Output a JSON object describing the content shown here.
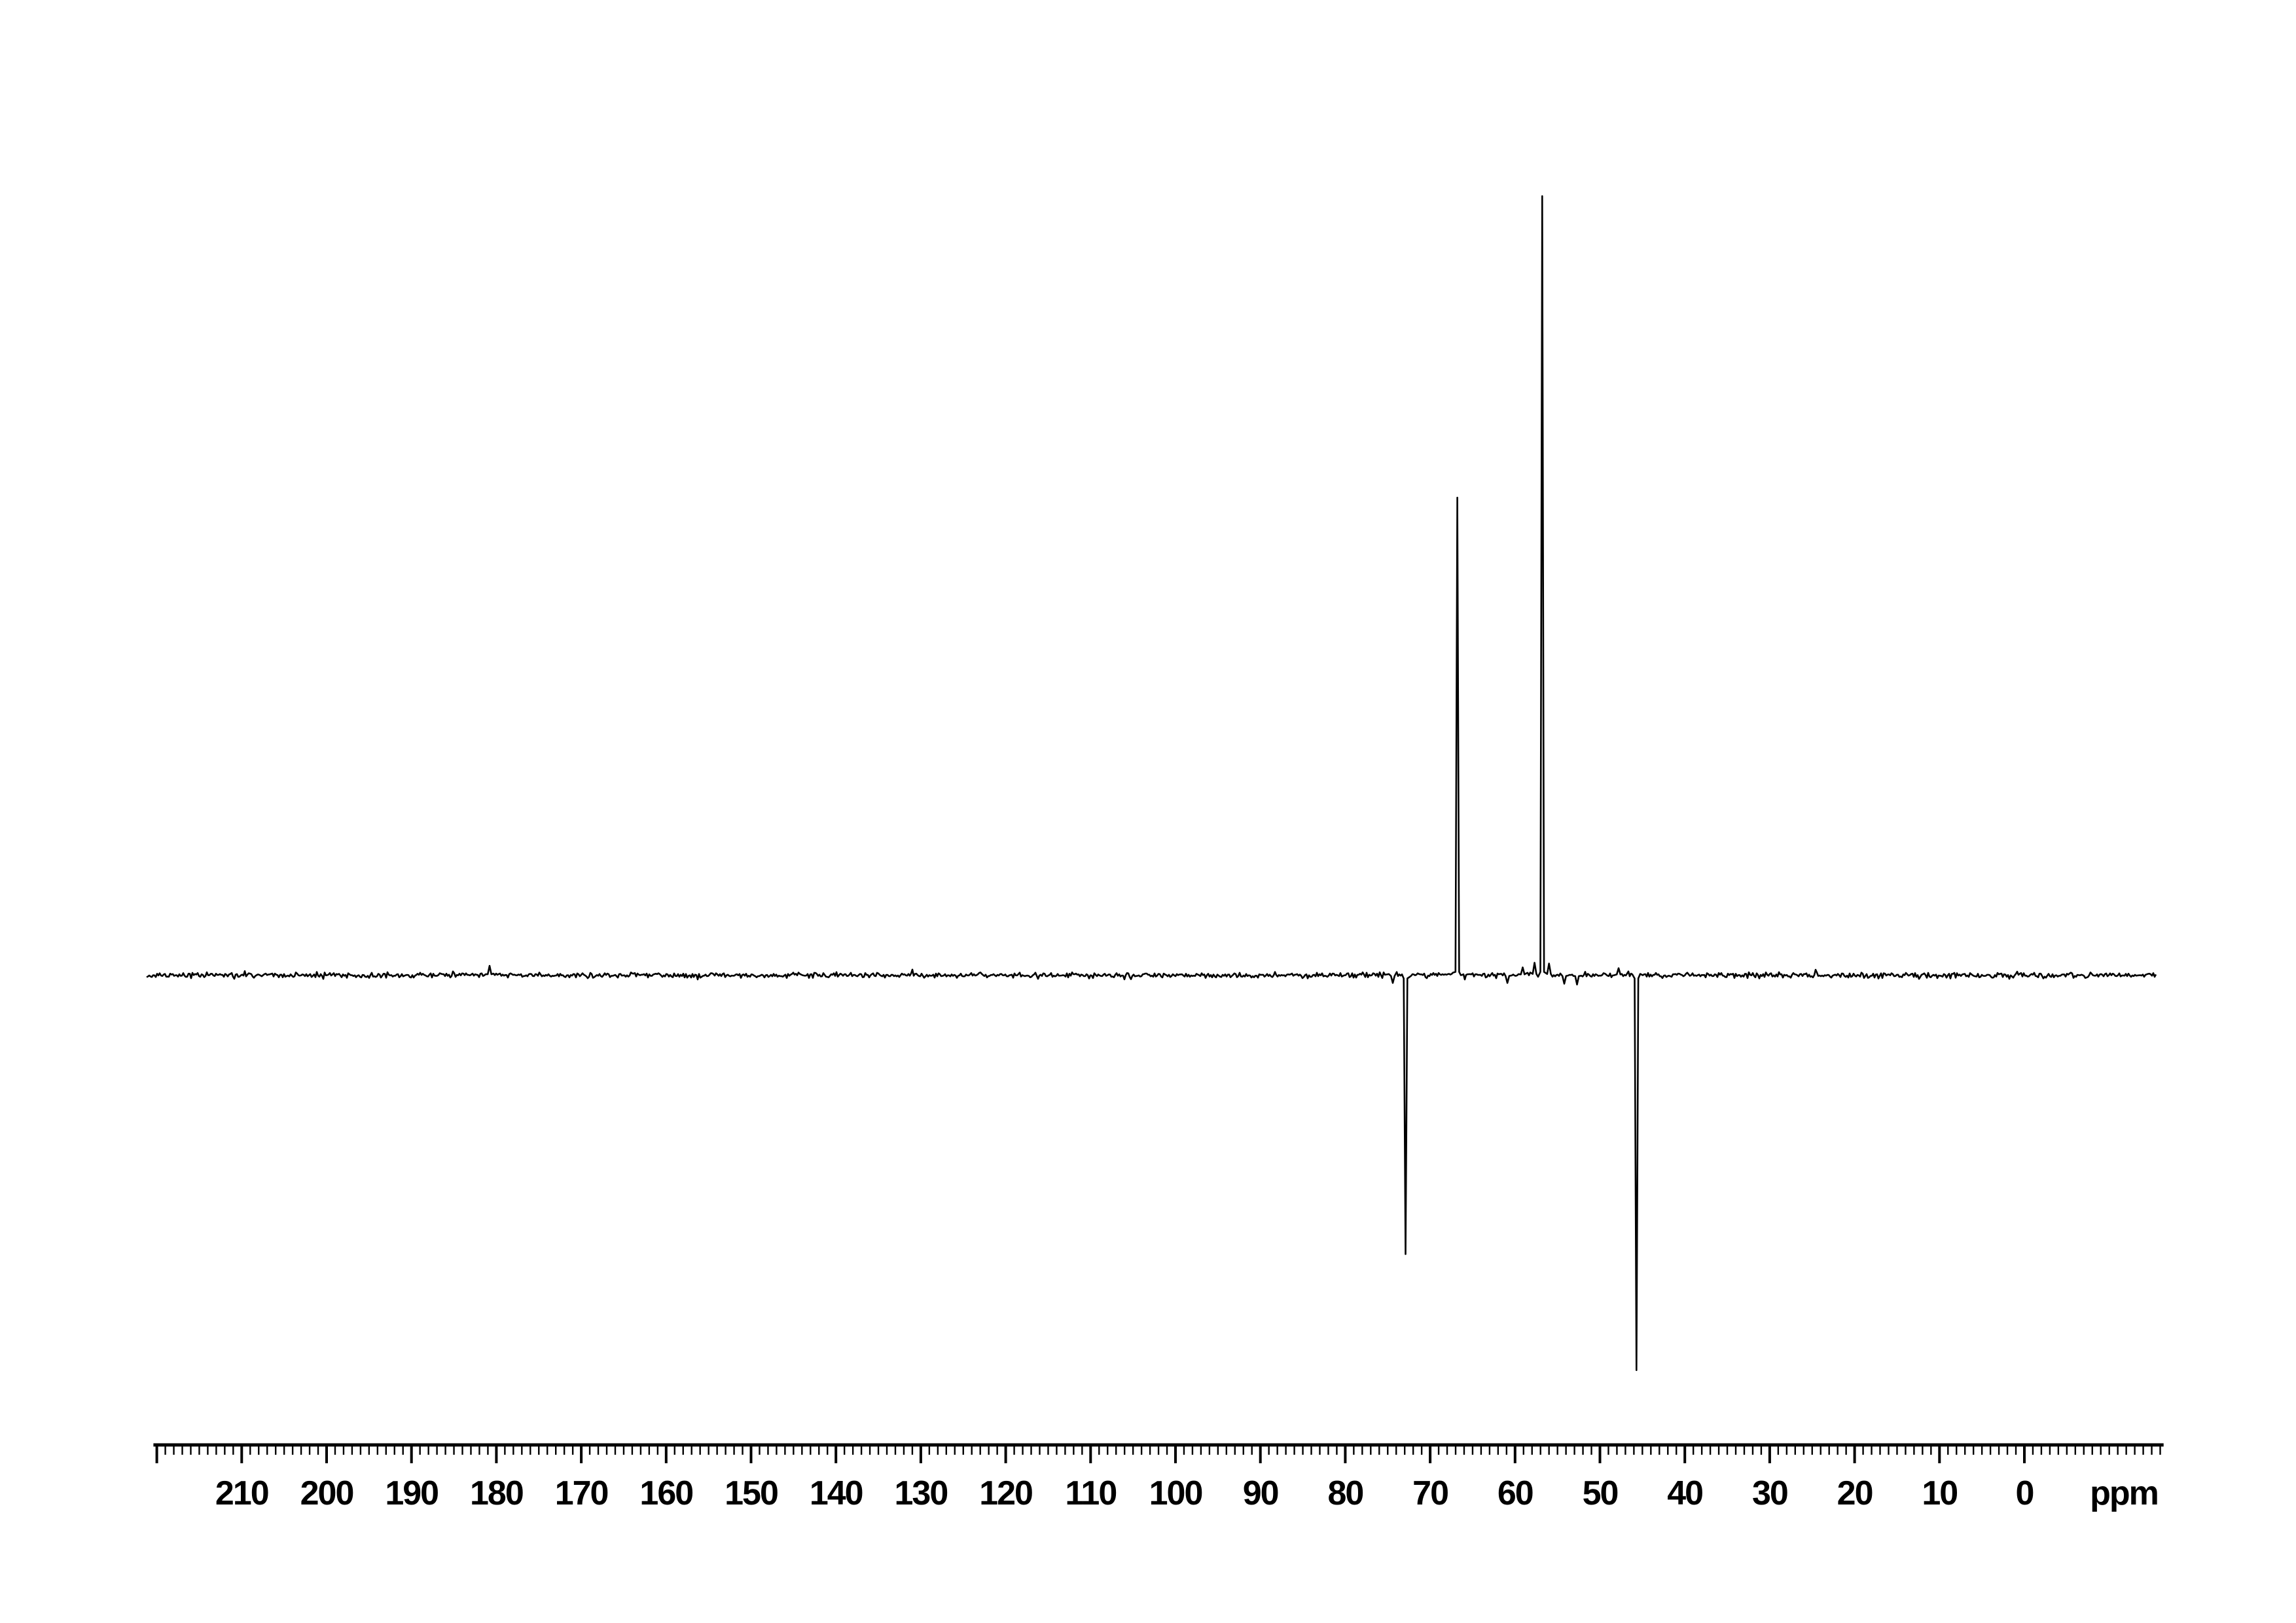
{
  "page": {
    "background_color": "#ffffff",
    "trace_color": "#000000"
  },
  "chart_data": {
    "type": "line",
    "subtype": "nmr-dept-13c-spectrum",
    "title": "",
    "xlabel": "ppm",
    "ylabel": "",
    "legend": "none",
    "grid": false,
    "x_axis": {
      "unit_label": "ppm",
      "min": -16,
      "max": 220,
      "reversed": true,
      "major_tick_step": 10,
      "minor_tick_step": 1,
      "major_ticks": [
        220,
        210,
        200,
        190,
        180,
        170,
        160,
        150,
        140,
        130,
        120,
        110,
        100,
        90,
        80,
        70,
        60,
        50,
        40,
        30,
        20,
        10,
        0
      ],
      "labeled_ticks": [
        {
          "value": 210,
          "label": "210"
        },
        {
          "value": 200,
          "label": "200"
        },
        {
          "value": 190,
          "label": "190"
        },
        {
          "value": 180,
          "label": "180"
        },
        {
          "value": 170,
          "label": "170"
        },
        {
          "value": 160,
          "label": "160"
        },
        {
          "value": 150,
          "label": "150"
        },
        {
          "value": 140,
          "label": "140"
        },
        {
          "value": 130,
          "label": "130"
        },
        {
          "value": 120,
          "label": "120"
        },
        {
          "value": 110,
          "label": "110"
        },
        {
          "value": 100,
          "label": "100"
        },
        {
          "value": 90,
          "label": "90"
        },
        {
          "value": 80,
          "label": "80"
        },
        {
          "value": 70,
          "label": "70"
        },
        {
          "value": 60,
          "label": "60"
        },
        {
          "value": 50,
          "label": "50"
        },
        {
          "value": 40,
          "label": "40"
        },
        {
          "value": 30,
          "label": "30"
        },
        {
          "value": 20,
          "label": "20"
        },
        {
          "value": 10,
          "label": "10"
        },
        {
          "value": 0,
          "label": "0"
        }
      ]
    },
    "trace_range_ppm": [
      221.2,
      -15.6
    ],
    "baseline_intensity": 0,
    "noise_level_rel": 0.004,
    "ylim_rel": [
      -0.51,
      1.0
    ],
    "peaks": [
      {
        "ppm": 180.8,
        "rel_intensity": 0.012
      },
      {
        "ppm": 74.4,
        "rel_intensity": -0.01
      },
      {
        "ppm": 72.9,
        "rel_intensity": -0.358
      },
      {
        "ppm": 66.8,
        "rel_intensity": 0.613
      },
      {
        "ppm": 60.9,
        "rel_intensity": -0.01
      },
      {
        "ppm": 59.1,
        "rel_intensity": 0.01
      },
      {
        "ppm": 57.7,
        "rel_intensity": 0.016
      },
      {
        "ppm": 56.8,
        "rel_intensity": 1.0
      },
      {
        "ppm": 56.0,
        "rel_intensity": 0.015
      },
      {
        "ppm": 54.2,
        "rel_intensity": -0.011
      },
      {
        "ppm": 52.7,
        "rel_intensity": -0.012
      },
      {
        "ppm": 47.8,
        "rel_intensity": 0.009
      },
      {
        "ppm": 45.7,
        "rel_intensity": -0.507
      }
    ]
  }
}
